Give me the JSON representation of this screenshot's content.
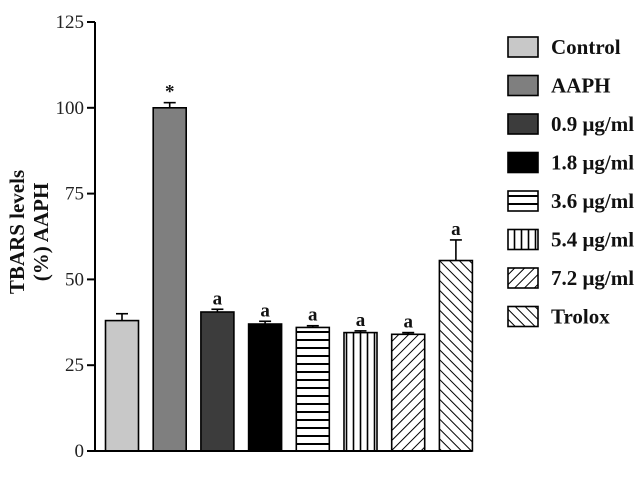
{
  "chart_data": {
    "type": "bar",
    "title": "",
    "xlabel": "",
    "ylabel_line1": "TBARS levels",
    "ylabel_line2": "(%) AAPH",
    "ylim": [
      0,
      125
    ],
    "yticks": [
      "0",
      "25",
      "50",
      "75",
      "100",
      "125"
    ],
    "grid": false,
    "legend_position": "right",
    "categories": [
      "Control",
      "AAPH",
      "0.9 μg/ml",
      "1.8 μg/ml",
      "3.6 μg/ml",
      "5.4 μg/ml",
      "7.2 μg/ml",
      "Trolox"
    ],
    "values": [
      38,
      100,
      40.5,
      37,
      36,
      34.5,
      34,
      55.5
    ],
    "errors": [
      2,
      1.5,
      0.8,
      0.8,
      0.5,
      0.5,
      0.5,
      6
    ],
    "annotations": [
      "",
      "*",
      "a",
      "a",
      "a",
      "a",
      "a",
      "a"
    ],
    "styles": [
      {
        "fill": "#c8c8c8",
        "pattern": "solid"
      },
      {
        "fill": "#7f7f7f",
        "pattern": "solid"
      },
      {
        "fill": "#3c3c3c",
        "pattern": "solid"
      },
      {
        "fill": "#000000",
        "pattern": "solid"
      },
      {
        "fill": "#ffffff",
        "pattern": "hstripes"
      },
      {
        "fill": "#ffffff",
        "pattern": "vstripes"
      },
      {
        "fill": "#ffffff",
        "pattern": "diag-down"
      },
      {
        "fill": "#ffffff",
        "pattern": "diag-up"
      }
    ]
  }
}
